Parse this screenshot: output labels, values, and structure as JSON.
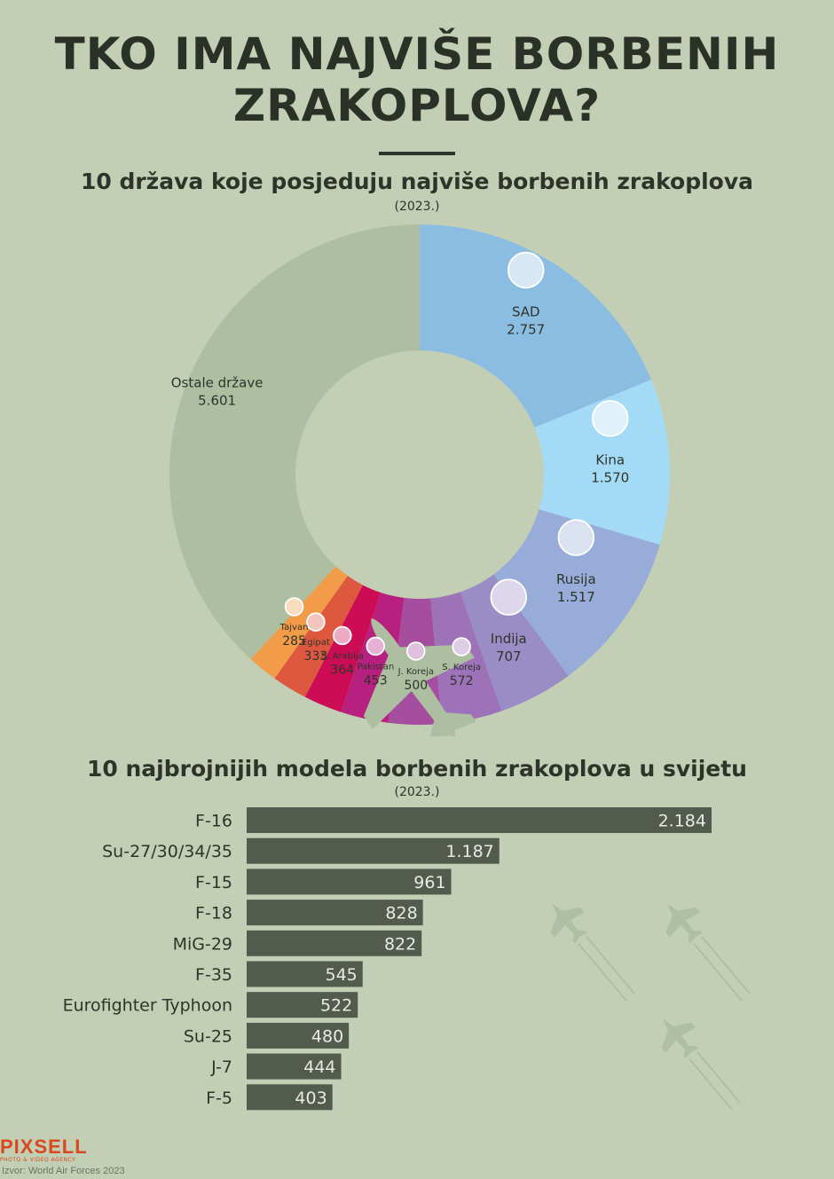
{
  "title_line1": "TKO IMA NAJVIŠE BORBENIH",
  "title_line2": "ZRAKOPLOVA?",
  "chart_data": [
    {
      "type": "pie",
      "title": "10 država koje posjeduju najviše borbenih zrakoplova",
      "subtitle": "(2023.)",
      "categories": [
        "SAD",
        "Kina",
        "Rusija",
        "Indija",
        "S. Koreja",
        "J. Koreja",
        "Pakistan",
        "S. Arabija",
        "Egipat",
        "Tajvan",
        "Ostale države"
      ],
      "value_labels": [
        "2.757",
        "1.570",
        "1.517",
        "707",
        "572",
        "500",
        "453",
        "364",
        "333",
        "285",
        "5.601"
      ],
      "values": [
        2757,
        1570,
        1517,
        707,
        572,
        500,
        453,
        364,
        333,
        285,
        5601
      ],
      "colors": [
        "#8bbde3",
        "#a3daf6",
        "#97acd9",
        "#9a8cc5",
        "#9d72b8",
        "#a54e9f",
        "#b7207e",
        "#cc0c55",
        "#de5840",
        "#f29b48",
        "#adbea1"
      ],
      "flags": [
        "us-flag-icon",
        "cn-flag-icon",
        "ru-flag-icon",
        "in-flag-icon",
        "kp-flag-icon",
        "kr-flag-icon",
        "pk-flag-icon",
        "sa-flag-icon",
        "eg-flag-icon",
        "tw-flag-icon",
        ""
      ],
      "center_icon": "fighter-jet-icon"
    },
    {
      "type": "bar",
      "orientation": "horizontal",
      "title": "10 najbrojnijih modela borbenih zrakoplova u svijetu",
      "subtitle": "(2023.)",
      "categories": [
        "F-16",
        "Su-27/30/34/35",
        "F-15",
        "F-18",
        "MiG-29",
        "F-35",
        "Eurofighter Typhoon",
        "Su-25",
        "J-7",
        "F-5"
      ],
      "values": [
        2184,
        1187,
        961,
        828,
        822,
        545,
        522,
        480,
        444,
        403
      ],
      "value_labels": [
        "2.184",
        "1.187",
        "961",
        "828",
        "822",
        "545",
        "522",
        "480",
        "444",
        "403"
      ],
      "bar_color": "#535a4e",
      "xlim": [
        0,
        2184
      ]
    }
  ],
  "brand": {
    "name": "PIXSELL",
    "tagline": "PHOTO & VIDEO AGENCY"
  },
  "source": "Izvor: World Air Forces 2023"
}
